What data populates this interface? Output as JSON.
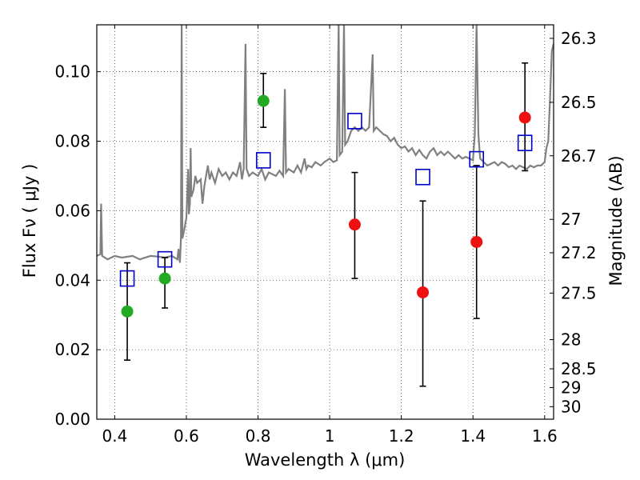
{
  "chart_data": {
    "type": "scatter",
    "xlabel": "Wavelength  λ (μm)",
    "ylabel": "Flux  Fν  ( μJy )",
    "y2label": "Magnitude (AB)",
    "xlim": [
      0.35,
      1.625
    ],
    "ylim": [
      0.0,
      0.1135
    ],
    "grid": true,
    "x_ticks": [
      0.4,
      0.6,
      0.8,
      1.0,
      1.2,
      1.4,
      1.6
    ],
    "x_tick_labels": [
      "0.4",
      "0.6",
      "0.8",
      "1",
      "1.2",
      "1.4",
      "1.6"
    ],
    "y_ticks": [
      0.0,
      0.02,
      0.04,
      0.06,
      0.08,
      0.1
    ],
    "y_tick_labels": [
      "0.00",
      "0.02",
      "0.04",
      "0.06",
      "0.08",
      "0.10"
    ],
    "y2_ticks": [
      {
        "label": "26.3",
        "flux": 0.1096
      },
      {
        "label": "26.5",
        "flux": 0.0912
      },
      {
        "label": "26.7",
        "flux": 0.0758
      },
      {
        "label": "27",
        "flux": 0.0575
      },
      {
        "label": "27.2",
        "flux": 0.0479
      },
      {
        "label": "27.5",
        "flux": 0.0363
      },
      {
        "label": "28",
        "flux": 0.0229
      },
      {
        "label": "28.5",
        "flux": 0.0145
      },
      {
        "label": "29",
        "flux": 0.0091
      },
      {
        "label": "30",
        "flux": 0.0036
      }
    ],
    "series": [
      {
        "name": "spectrum",
        "kind": "line",
        "color": "#808080",
        "points": [
          [
            0.35,
            0.047
          ],
          [
            0.36,
            0.0475
          ],
          [
            0.362,
            0.062
          ],
          [
            0.365,
            0.047
          ],
          [
            0.38,
            0.046
          ],
          [
            0.4,
            0.047
          ],
          [
            0.42,
            0.0465
          ],
          [
            0.45,
            0.047
          ],
          [
            0.47,
            0.046
          ],
          [
            0.5,
            0.047
          ],
          [
            0.52,
            0.0468
          ],
          [
            0.54,
            0.0465
          ],
          [
            0.56,
            0.047
          ],
          [
            0.575,
            0.046
          ],
          [
            0.578,
            0.049
          ],
          [
            0.582,
            0.045
          ],
          [
            0.585,
            0.052
          ],
          [
            0.587,
            0.1135
          ],
          [
            0.589,
            0.052
          ],
          [
            0.595,
            0.055
          ],
          [
            0.6,
            0.058
          ],
          [
            0.605,
            0.072
          ],
          [
            0.607,
            0.059
          ],
          [
            0.61,
            0.062
          ],
          [
            0.612,
            0.078
          ],
          [
            0.614,
            0.064
          ],
          [
            0.62,
            0.066
          ],
          [
            0.625,
            0.07
          ],
          [
            0.63,
            0.068
          ],
          [
            0.64,
            0.069
          ],
          [
            0.645,
            0.062
          ],
          [
            0.65,
            0.067
          ],
          [
            0.66,
            0.073
          ],
          [
            0.665,
            0.069
          ],
          [
            0.67,
            0.071
          ],
          [
            0.68,
            0.068
          ],
          [
            0.69,
            0.072
          ],
          [
            0.7,
            0.07
          ],
          [
            0.71,
            0.071
          ],
          [
            0.72,
            0.069
          ],
          [
            0.73,
            0.071
          ],
          [
            0.74,
            0.07
          ],
          [
            0.75,
            0.074
          ],
          [
            0.755,
            0.069
          ],
          [
            0.76,
            0.072
          ],
          [
            0.765,
            0.108
          ],
          [
            0.768,
            0.072
          ],
          [
            0.775,
            0.07
          ],
          [
            0.785,
            0.071
          ],
          [
            0.8,
            0.07
          ],
          [
            0.81,
            0.072
          ],
          [
            0.82,
            0.069
          ],
          [
            0.83,
            0.071
          ],
          [
            0.85,
            0.07
          ],
          [
            0.86,
            0.0715
          ],
          [
            0.87,
            0.07
          ],
          [
            0.875,
            0.095
          ],
          [
            0.878,
            0.071
          ],
          [
            0.885,
            0.072
          ],
          [
            0.9,
            0.071
          ],
          [
            0.91,
            0.073
          ],
          [
            0.92,
            0.071
          ],
          [
            0.93,
            0.075
          ],
          [
            0.935,
            0.072
          ],
          [
            0.94,
            0.073
          ],
          [
            0.95,
            0.0725
          ],
          [
            0.96,
            0.074
          ],
          [
            0.975,
            0.073
          ],
          [
            0.985,
            0.074
          ],
          [
            1.0,
            0.075
          ],
          [
            1.01,
            0.074
          ],
          [
            1.02,
            0.0745
          ],
          [
            1.025,
            0.1135
          ],
          [
            1.028,
            0.076
          ],
          [
            1.035,
            0.077
          ],
          [
            1.04,
            0.1135
          ],
          [
            1.043,
            0.079
          ],
          [
            1.05,
            0.08
          ],
          [
            1.06,
            0.083
          ],
          [
            1.07,
            0.084
          ],
          [
            1.08,
            0.083
          ],
          [
            1.09,
            0.084
          ],
          [
            1.1,
            0.083
          ],
          [
            1.11,
            0.084
          ],
          [
            1.12,
            0.105
          ],
          [
            1.123,
            0.083
          ],
          [
            1.13,
            0.084
          ],
          [
            1.14,
            0.083
          ],
          [
            1.15,
            0.082
          ],
          [
            1.16,
            0.0815
          ],
          [
            1.17,
            0.08
          ],
          [
            1.18,
            0.081
          ],
          [
            1.19,
            0.079
          ],
          [
            1.2,
            0.078
          ],
          [
            1.21,
            0.0785
          ],
          [
            1.22,
            0.077
          ],
          [
            1.23,
            0.078
          ],
          [
            1.24,
            0.076
          ],
          [
            1.25,
            0.0775
          ],
          [
            1.26,
            0.076
          ],
          [
            1.27,
            0.075
          ],
          [
            1.28,
            0.077
          ],
          [
            1.29,
            0.078
          ],
          [
            1.3,
            0.076
          ],
          [
            1.31,
            0.077
          ],
          [
            1.32,
            0.076
          ],
          [
            1.33,
            0.077
          ],
          [
            1.34,
            0.076
          ],
          [
            1.35,
            0.075
          ],
          [
            1.36,
            0.076
          ],
          [
            1.37,
            0.075
          ],
          [
            1.38,
            0.0755
          ],
          [
            1.39,
            0.075
          ],
          [
            1.4,
            0.0745
          ],
          [
            1.405,
            0.082
          ],
          [
            1.41,
            0.1135
          ],
          [
            1.415,
            0.082
          ],
          [
            1.42,
            0.075
          ],
          [
            1.43,
            0.074
          ],
          [
            1.44,
            0.073
          ],
          [
            1.45,
            0.0735
          ],
          [
            1.46,
            0.074
          ],
          [
            1.47,
            0.073
          ],
          [
            1.48,
            0.074
          ],
          [
            1.49,
            0.0735
          ],
          [
            1.5,
            0.0725
          ],
          [
            1.51,
            0.073
          ],
          [
            1.52,
            0.072
          ],
          [
            1.53,
            0.073
          ],
          [
            1.54,
            0.0725
          ],
          [
            1.55,
            0.072
          ],
          [
            1.56,
            0.073
          ],
          [
            1.57,
            0.0725
          ],
          [
            1.58,
            0.073
          ],
          [
            1.59,
            0.073
          ],
          [
            1.6,
            0.074
          ],
          [
            1.605,
            0.078
          ],
          [
            1.61,
            0.08
          ],
          [
            1.615,
            0.092
          ],
          [
            1.62,
            0.106
          ],
          [
            1.625,
            0.108
          ]
        ]
      },
      {
        "name": "model_photometry",
        "kind": "square",
        "color": "#0000cc",
        "points": [
          [
            0.435,
            0.0405
          ],
          [
            0.54,
            0.046
          ],
          [
            0.815,
            0.0745
          ],
          [
            1.07,
            0.0858
          ],
          [
            1.26,
            0.0697
          ],
          [
            1.41,
            0.0748
          ],
          [
            1.545,
            0.0795
          ]
        ]
      },
      {
        "name": "detections",
        "kind": "circle_errorbar",
        "color": "#22aa22",
        "points": [
          {
            "x": 0.435,
            "y": 0.031,
            "err_low": 0.017,
            "err_high": 0.045
          },
          {
            "x": 0.54,
            "y": 0.0405,
            "err_low": 0.032,
            "err_high": 0.0465
          },
          {
            "x": 0.815,
            "y": 0.0916,
            "err_low": 0.084,
            "err_high": 0.0995
          }
        ]
      },
      {
        "name": "nir_photometry",
        "kind": "circle_errorbar",
        "color": "#ee1111",
        "points": [
          {
            "x": 1.07,
            "y": 0.056,
            "err_low": 0.0405,
            "err_high": 0.071
          },
          {
            "x": 1.26,
            "y": 0.0365,
            "err_low": 0.0095,
            "err_high": 0.0628
          },
          {
            "x": 1.41,
            "y": 0.051,
            "err_low": 0.029,
            "err_high": 0.073
          },
          {
            "x": 1.545,
            "y": 0.0868,
            "err_low": 0.0715,
            "err_high": 0.1025
          }
        ]
      }
    ]
  }
}
